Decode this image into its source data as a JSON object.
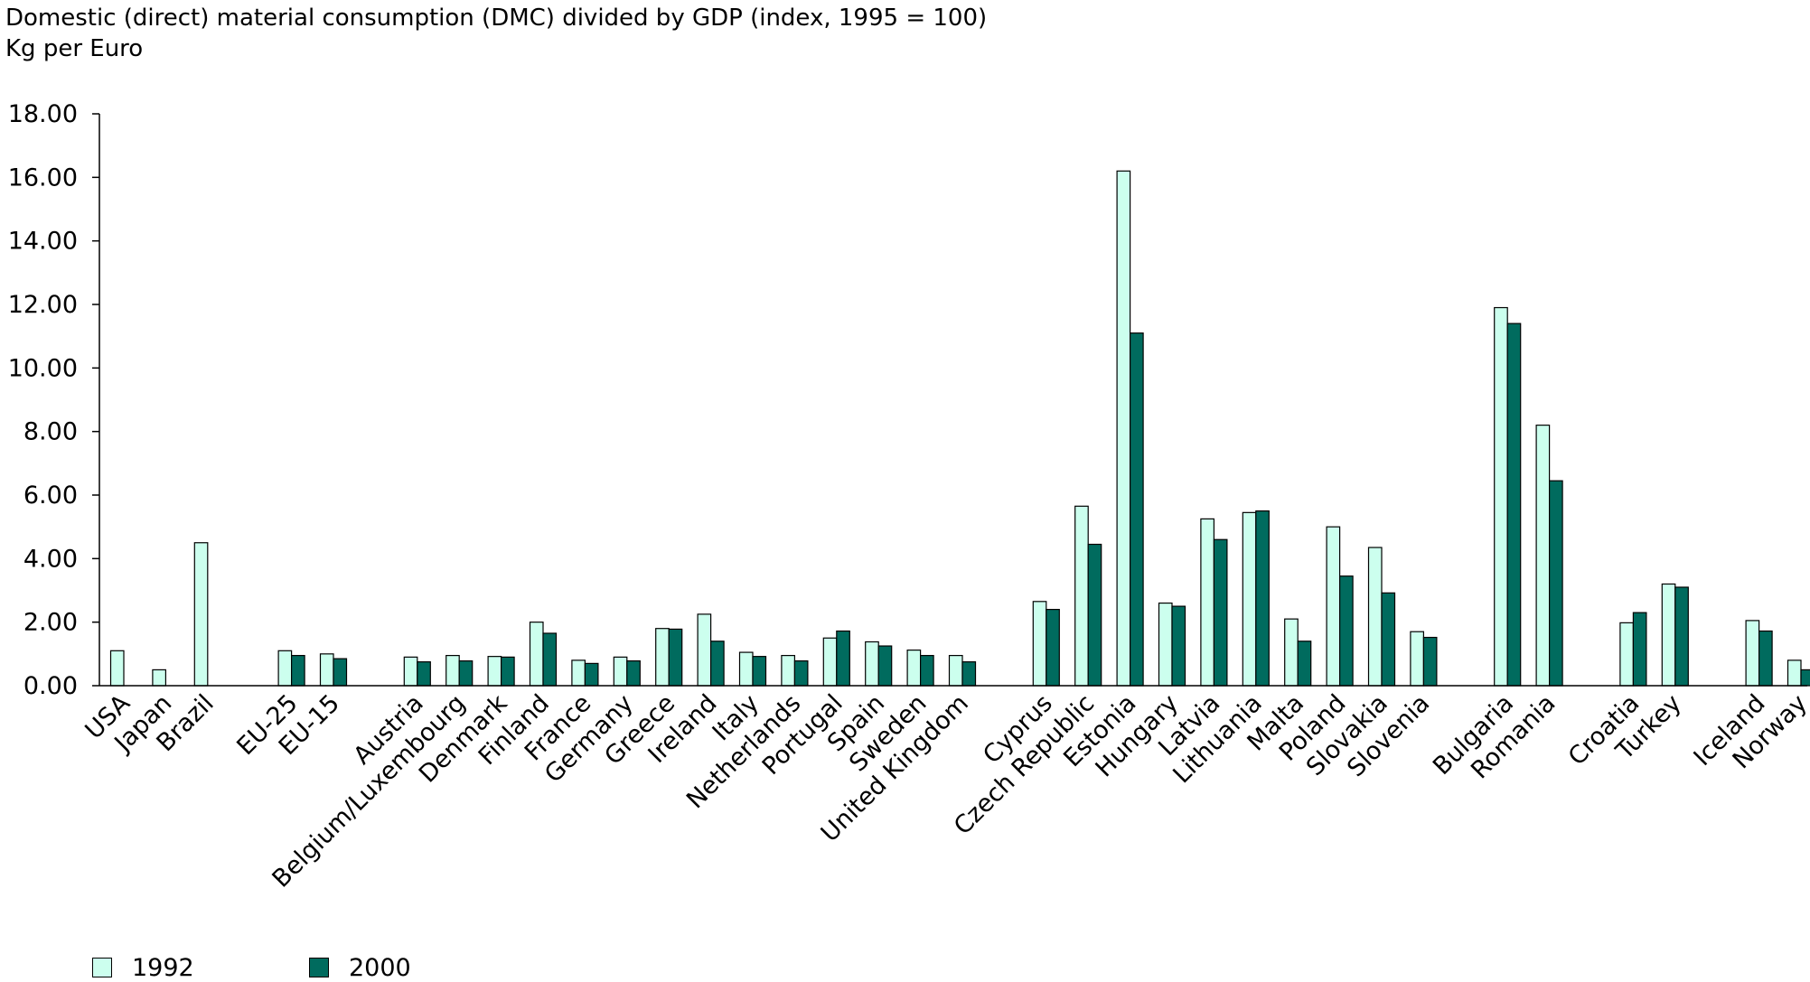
{
  "chart_data": {
    "type": "bar",
    "title": "Domestic (direct) material consumption (DMC) divided by GDP (index, 1995 = 100)",
    "ylabel": "Kg per Euro",
    "xlabel": "",
    "ylim": [
      0,
      18
    ],
    "yticks": [
      "0.00",
      "2.00",
      "4.00",
      "6.00",
      "8.00",
      "10.00",
      "12.00",
      "14.00",
      "16.00",
      "18.00"
    ],
    "grid": false,
    "legend_position": "bottom-left",
    "colors": {
      "1992": "#ccffee",
      "2000": "#006b5e"
    },
    "categories": [
      "USA",
      "Japan",
      "Brazil",
      "",
      "EU-25",
      "EU-15",
      "",
      "Austria",
      "Belgium/Luxembourg",
      "Denmark",
      "Finland",
      "France",
      "Germany",
      "Greece",
      "Ireland",
      "Italy",
      "Netherlands",
      "Portugal",
      "Spain",
      "Sweden",
      "United Kingdom",
      "",
      "Cyprus",
      "Czech Republic",
      "Estonia",
      "Hungary",
      "Latvia",
      "Lithuania",
      "Malta",
      "Poland",
      "Slovakia",
      "Slovenia",
      "",
      "Bulgaria",
      "Romania",
      "",
      "Croatia",
      "Turkey",
      "",
      "Iceland",
      "Norway"
    ],
    "series": [
      {
        "name": "1992",
        "values": [
          1.1,
          0.5,
          4.5,
          null,
          1.1,
          1.0,
          null,
          0.9,
          0.95,
          0.92,
          2.0,
          0.8,
          0.9,
          1.8,
          2.25,
          1.05,
          0.95,
          1.5,
          1.38,
          1.12,
          0.95,
          null,
          2.65,
          5.65,
          16.2,
          2.6,
          5.25,
          5.45,
          2.1,
          5.0,
          4.35,
          1.7,
          null,
          11.9,
          8.2,
          null,
          1.98,
          3.2,
          null,
          2.05,
          0.8
        ]
      },
      {
        "name": "2000",
        "values": [
          null,
          null,
          null,
          null,
          0.95,
          0.85,
          null,
          0.75,
          0.78,
          0.9,
          1.65,
          0.7,
          0.78,
          1.78,
          1.4,
          0.92,
          0.78,
          1.72,
          1.25,
          0.95,
          0.75,
          null,
          2.4,
          4.45,
          11.1,
          2.5,
          4.6,
          5.5,
          1.4,
          3.45,
          2.92,
          1.52,
          null,
          11.4,
          6.45,
          null,
          2.3,
          3.1,
          null,
          1.72,
          0.5
        ]
      }
    ]
  }
}
